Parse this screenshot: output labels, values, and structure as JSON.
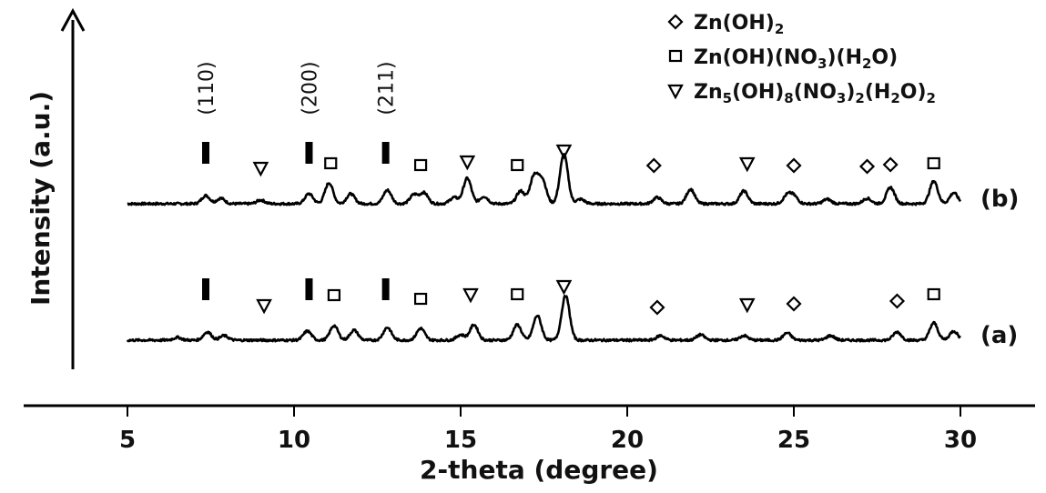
{
  "chart_data": {
    "type": "line",
    "title": "",
    "xlabel": "2-theta (degree)",
    "ylabel": "Intensity (a.u.)",
    "xlim": [
      5,
      30
    ],
    "xticks": [
      "5",
      "10",
      "15",
      "20",
      "25",
      "30"
    ],
    "grid": false,
    "legend_position": "top-right",
    "legend": [
      {
        "marker": "diamond",
        "label": "Zn(OH)",
        "subs": [
          "2"
        ]
      },
      {
        "marker": "square",
        "label": "Zn(OH)(NO)(HO)",
        "subs": [
          "3",
          "2"
        ]
      },
      {
        "marker": "triangle-down",
        "label": "Zn(OH)(NO)(HO)",
        "subs": [
          "5",
          "8",
          "3",
          "2",
          "2",
          "2"
        ]
      }
    ],
    "plane_labels": [
      {
        "x": 7.4,
        "label": "(110)"
      },
      {
        "x": 10.5,
        "label": "(200)"
      },
      {
        "x": 12.8,
        "label": "(211)"
      }
    ],
    "series": [
      {
        "name": "(b)",
        "baseline": 0.0,
        "peaks": [
          {
            "x": 7.35,
            "h": 0.9
          },
          {
            "x": 7.8,
            "h": 0.6
          },
          {
            "x": 9.0,
            "h": 0.4
          },
          {
            "x": 10.45,
            "h": 1.1
          },
          {
            "x": 11.05,
            "h": 2.3
          },
          {
            "x": 11.7,
            "h": 1.1
          },
          {
            "x": 12.8,
            "h": 1.5
          },
          {
            "x": 13.6,
            "h": 1.0
          },
          {
            "x": 13.9,
            "h": 1.2
          },
          {
            "x": 14.8,
            "h": 0.7
          },
          {
            "x": 15.2,
            "h": 2.8
          },
          {
            "x": 15.7,
            "h": 0.8
          },
          {
            "x": 16.8,
            "h": 1.4
          },
          {
            "x": 17.2,
            "h": 3.0
          },
          {
            "x": 17.45,
            "h": 2.6
          },
          {
            "x": 18.1,
            "h": 5.4
          },
          {
            "x": 18.6,
            "h": 0.5
          },
          {
            "x": 20.9,
            "h": 0.7
          },
          {
            "x": 21.9,
            "h": 1.6
          },
          {
            "x": 23.5,
            "h": 1.4
          },
          {
            "x": 24.8,
            "h": 0.9
          },
          {
            "x": 25.0,
            "h": 0.8
          },
          {
            "x": 26.0,
            "h": 0.5
          },
          {
            "x": 27.2,
            "h": 0.6
          },
          {
            "x": 27.9,
            "h": 1.8
          },
          {
            "x": 29.2,
            "h": 2.5
          },
          {
            "x": 29.8,
            "h": 1.2
          }
        ],
        "markers": [
          {
            "x": 7.35,
            "type": "bar"
          },
          {
            "x": 10.45,
            "type": "bar"
          },
          {
            "x": 12.75,
            "type": "bar"
          },
          {
            "x": 9.0,
            "type": "triangle",
            "h": 1.5
          },
          {
            "x": 11.1,
            "type": "square",
            "h": 2.0
          },
          {
            "x": 13.8,
            "type": "square",
            "h": 1.8
          },
          {
            "x": 15.2,
            "type": "triangle",
            "h": 2.2
          },
          {
            "x": 16.7,
            "type": "square",
            "h": 1.8
          },
          {
            "x": 18.1,
            "type": "triangle",
            "h": 3.4
          },
          {
            "x": 20.8,
            "type": "diamond",
            "h": 1.8
          },
          {
            "x": 23.6,
            "type": "triangle",
            "h": 2.0
          },
          {
            "x": 25.0,
            "type": "diamond",
            "h": 1.8
          },
          {
            "x": 27.2,
            "type": "diamond",
            "h": 1.7
          },
          {
            "x": 27.9,
            "type": "diamond",
            "h": 1.9
          },
          {
            "x": 29.2,
            "type": "square",
            "h": 2.0
          }
        ]
      },
      {
        "name": "(a)",
        "baseline": 0.0,
        "peaks": [
          {
            "x": 6.5,
            "h": 0.3
          },
          {
            "x": 7.4,
            "h": 0.9
          },
          {
            "x": 7.9,
            "h": 0.5
          },
          {
            "x": 10.4,
            "h": 1.0
          },
          {
            "x": 11.2,
            "h": 1.6
          },
          {
            "x": 11.8,
            "h": 1.1
          },
          {
            "x": 12.8,
            "h": 1.4
          },
          {
            "x": 13.8,
            "h": 1.3
          },
          {
            "x": 15.0,
            "h": 0.6
          },
          {
            "x": 15.4,
            "h": 1.7
          },
          {
            "x": 16.7,
            "h": 1.7
          },
          {
            "x": 17.3,
            "h": 2.7
          },
          {
            "x": 18.15,
            "h": 4.9
          },
          {
            "x": 21.0,
            "h": 0.5
          },
          {
            "x": 22.2,
            "h": 0.6
          },
          {
            "x": 23.5,
            "h": 0.5
          },
          {
            "x": 24.8,
            "h": 0.8
          },
          {
            "x": 26.1,
            "h": 0.5
          },
          {
            "x": 28.1,
            "h": 0.9
          },
          {
            "x": 29.2,
            "h": 1.9
          },
          {
            "x": 29.8,
            "h": 1.0
          }
        ],
        "markers": [
          {
            "x": 7.35,
            "type": "bar"
          },
          {
            "x": 10.45,
            "type": "bar"
          },
          {
            "x": 12.75,
            "type": "bar"
          },
          {
            "x": 9.1,
            "type": "triangle",
            "h": 1.4
          },
          {
            "x": 11.2,
            "type": "square",
            "h": 2.5
          },
          {
            "x": 13.8,
            "type": "square",
            "h": 2.1
          },
          {
            "x": 15.3,
            "type": "triangle",
            "h": 2.6
          },
          {
            "x": 16.7,
            "type": "square",
            "h": 2.6
          },
          {
            "x": 18.1,
            "type": "triangle",
            "h": 3.5
          },
          {
            "x": 20.9,
            "type": "diamond",
            "h": 1.2
          },
          {
            "x": 23.6,
            "type": "triangle",
            "h": 1.5
          },
          {
            "x": 25.0,
            "type": "diamond",
            "h": 1.6
          },
          {
            "x": 28.1,
            "type": "diamond",
            "h": 1.9
          },
          {
            "x": 29.2,
            "type": "square",
            "h": 2.6
          }
        ]
      }
    ]
  }
}
